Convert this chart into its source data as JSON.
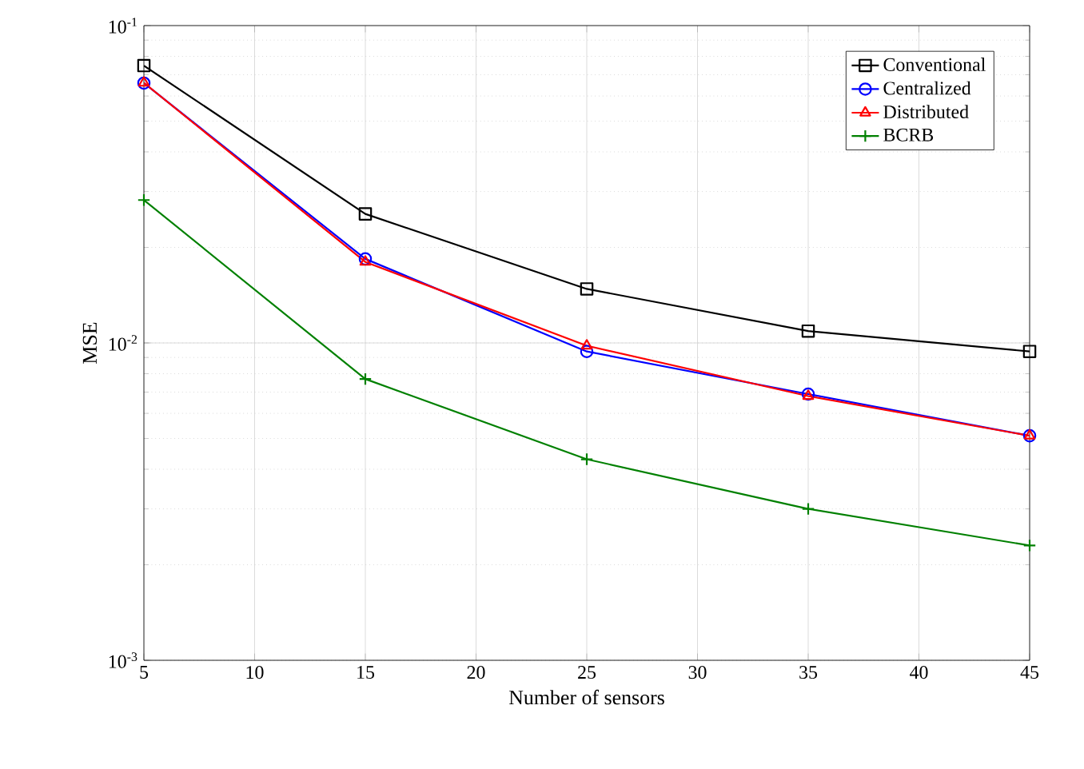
{
  "chart_data": {
    "type": "line",
    "xlabel": "Number of sensors",
    "ylabel": "MSE",
    "x": [
      5,
      15,
      25,
      35,
      45
    ],
    "series": [
      {
        "name": "Conventional",
        "color": "#000000",
        "marker": "square",
        "values": [
          0.0748,
          0.0255,
          0.0148,
          0.0109,
          0.0094
        ]
      },
      {
        "name": "Centralized",
        "color": "#0000ff",
        "marker": "circle",
        "values": [
          0.0659,
          0.0184,
          0.0094,
          0.0069,
          0.0051
        ]
      },
      {
        "name": "Distributed",
        "color": "#ff0000",
        "marker": "triangle",
        "values": [
          0.066,
          0.018,
          0.0098,
          0.0068,
          0.0051
        ]
      },
      {
        "name": "BCRB",
        "color": "#008000",
        "marker": "cross",
        "values": [
          0.0282,
          0.0077,
          0.0043,
          0.003,
          0.0023
        ]
      }
    ],
    "log": "y",
    "grid": true,
    "legend": "top right",
    "xlim": [
      5,
      45
    ],
    "xticks": [
      5,
      10,
      15,
      20,
      25,
      30,
      35,
      40,
      45
    ],
    "ylim": [
      0.001,
      0.1
    ],
    "yticks": [
      {
        "value": 0.001,
        "label": "10$^{-3}$"
      },
      {
        "value": 0.01,
        "label": "10$^{-2}$"
      },
      {
        "value": 0.1,
        "label": "10$^{-1}$"
      }
    ]
  }
}
